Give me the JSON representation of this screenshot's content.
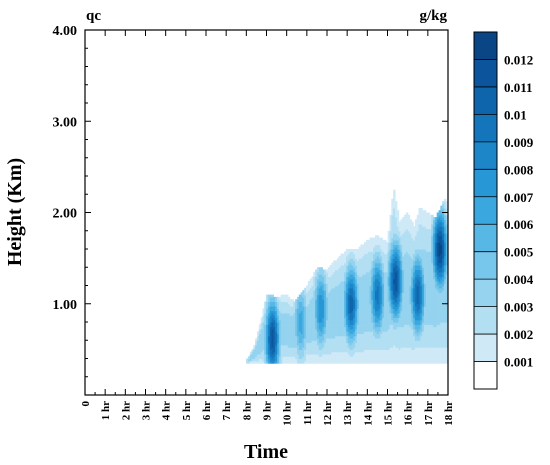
{
  "chart_data": {
    "type": "heatmap",
    "subtype": "filled-contour",
    "title_left": "qc",
    "title_right": "g/kg",
    "xlabel": "Time",
    "ylabel": "Height (Km)",
    "x_ticklabels": [
      "0",
      "1 hr",
      "2 hr",
      "3 hr",
      "4 hr",
      "5 hr",
      "6 hr",
      "7 hr",
      "8 hr",
      "9 hr",
      "10 hr",
      "11 hr",
      "12 hr",
      "13 hr",
      "14 hr",
      "15 hr",
      "16 hr",
      "17 hr",
      "18 hr"
    ],
    "xlim": [
      0,
      18
    ],
    "y_ticks": [
      1,
      2,
      3,
      4
    ],
    "y_ticklabels": [
      "1.00",
      "2.00",
      "3.00",
      "4.00"
    ],
    "ylim": [
      0,
      4
    ],
    "grid": false,
    "colorbar": {
      "levels": [
        0.001,
        0.002,
        0.003,
        0.004,
        0.005,
        0.006,
        0.007,
        0.008,
        0.009,
        0.01,
        0.011,
        0.012
      ],
      "labels": [
        "0.001",
        "0.002",
        "0.003",
        "0.004",
        "0.005",
        "0.006",
        "0.007",
        "0.008",
        "0.009",
        "0.01",
        "0.011",
        "0.012"
      ],
      "colors": [
        "#ffffff",
        "#cfe9f7",
        "#b3dff3",
        "#95d3ef",
        "#77c6eb",
        "#58b8e5",
        "#3aa8df",
        "#2797d5",
        "#1c86c9",
        "#1575bb",
        "#0f65ac",
        "#0c559c",
        "#0a4686"
      ]
    },
    "field": {
      "cloud_base_km": 0.35,
      "top_km": [
        [
          8.0,
          0.38
        ],
        [
          8.4,
          0.55
        ],
        [
          8.7,
          0.8
        ],
        [
          9.0,
          1.1
        ],
        [
          9.5,
          1.08
        ],
        [
          10.0,
          1.1
        ],
        [
          10.4,
          1.02
        ],
        [
          11.0,
          1.2
        ],
        [
          11.5,
          1.4
        ],
        [
          12.0,
          1.38
        ],
        [
          12.5,
          1.5
        ],
        [
          13.0,
          1.6
        ],
        [
          13.5,
          1.6
        ],
        [
          14.0,
          1.7
        ],
        [
          14.5,
          1.75
        ],
        [
          15.0,
          1.68
        ],
        [
          15.3,
          2.28
        ],
        [
          15.6,
          1.9
        ],
        [
          16.0,
          2.0
        ],
        [
          16.3,
          1.85
        ],
        [
          16.6,
          2.05
        ],
        [
          17.0,
          2.0
        ],
        [
          17.4,
          1.95
        ],
        [
          17.8,
          2.15
        ],
        [
          18.0,
          2.1
        ]
      ],
      "maxima": [
        {
          "t": 9.3,
          "z": 0.62,
          "qc": 0.0115
        },
        {
          "t": 10.7,
          "z": 0.8,
          "qc": 0.0065
        },
        {
          "t": 11.7,
          "z": 0.95,
          "qc": 0.008
        },
        {
          "t": 13.2,
          "z": 1.0,
          "qc": 0.0105
        },
        {
          "t": 14.5,
          "z": 1.1,
          "qc": 0.0095
        },
        {
          "t": 15.4,
          "z": 1.25,
          "qc": 0.0115
        },
        {
          "t": 16.5,
          "z": 1.1,
          "qc": 0.0105
        },
        {
          "t": 17.6,
          "z": 1.6,
          "qc": 0.0125
        }
      ]
    }
  }
}
